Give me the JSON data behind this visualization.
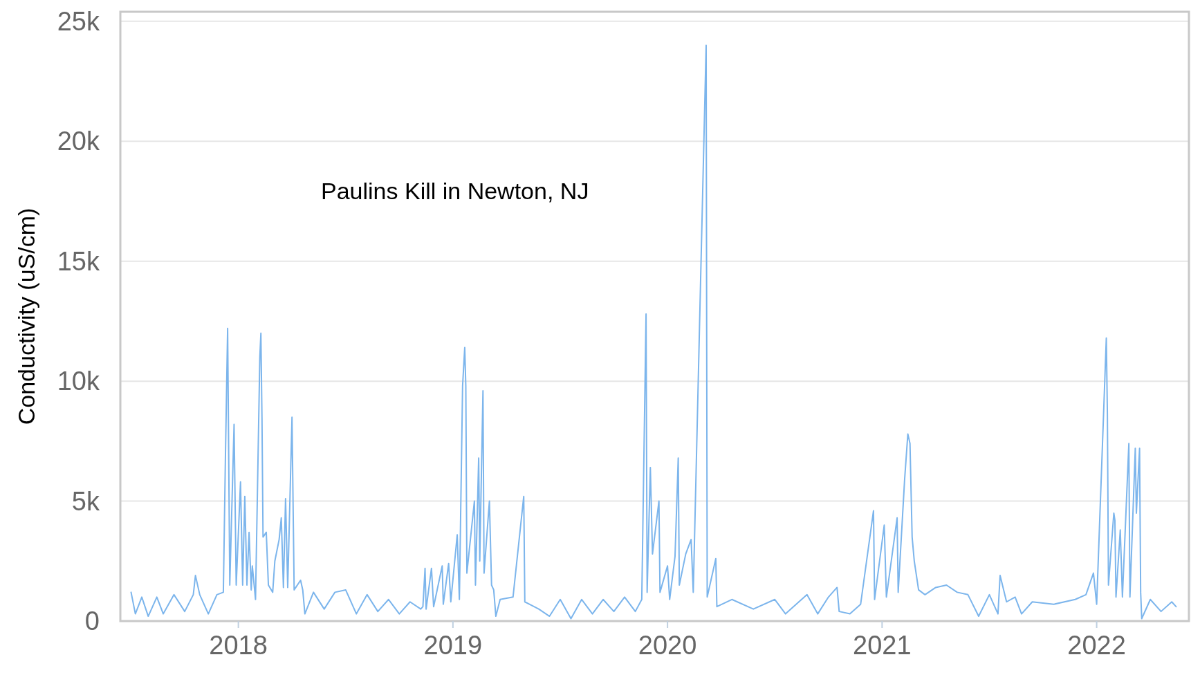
{
  "chart_data": {
    "type": "line",
    "title": "Paulins Kill in Newton, NJ",
    "ylabel": "Conductivity (uS/cm)",
    "xlim": [
      2017.45,
      2022.43
    ],
    "xticks": [
      2018,
      2019,
      2020,
      2021,
      2022
    ],
    "ylim": [
      0,
      25400
    ],
    "yticks": [
      0,
      {
        "value": 5000,
        "label": "5k"
      },
      {
        "value": 10000,
        "label": "10k"
      },
      {
        "value": 15000,
        "label": "15k"
      },
      {
        "value": 20000,
        "label": "20k"
      },
      {
        "value": 25000,
        "label": "25k"
      }
    ],
    "grid": "y",
    "marker": "none",
    "line_style": "solid",
    "series": [
      {
        "color": "#7cb5ec",
        "x": [
          2017.5,
          2017.52,
          2017.55,
          2017.58,
          2017.62,
          2017.65,
          2017.7,
          2017.75,
          2017.79,
          2017.8,
          2017.82,
          2017.86,
          2017.9,
          2017.93,
          2017.94,
          2017.95,
          2017.96,
          2017.98,
          2017.99,
          2018.01,
          2018.02,
          2018.03,
          2018.04,
          2018.05,
          2018.06,
          2018.065,
          2018.08,
          2018.1,
          2018.105,
          2018.11,
          2018.115,
          2018.13,
          2018.14,
          2018.16,
          2018.17,
          2018.19,
          2018.2,
          2018.21,
          2018.22,
          2018.23,
          2018.25,
          2018.26,
          2018.29,
          2018.3,
          2018.31,
          2018.35,
          2018.4,
          2018.45,
          2018.5,
          2018.55,
          2018.6,
          2018.65,
          2018.7,
          2018.75,
          2018.8,
          2018.85,
          2018.86,
          2018.87,
          2018.875,
          2018.9,
          2018.91,
          2018.95,
          2018.955,
          2018.98,
          2018.99,
          2019.02,
          2019.03,
          2019.045,
          2019.055,
          2019.06,
          2019.065,
          2019.1,
          2019.105,
          2019.12,
          2019.125,
          2019.14,
          2019.145,
          2019.17,
          2019.18,
          2019.19,
          2019.2,
          2019.22,
          2019.28,
          2019.33,
          2019.335,
          2019.4,
          2019.45,
          2019.5,
          2019.55,
          2019.6,
          2019.65,
          2019.7,
          2019.75,
          2019.8,
          2019.85,
          2019.88,
          2019.9,
          2019.905,
          2019.92,
          2019.93,
          2019.96,
          2019.965,
          2020.0,
          2020.01,
          2020.035,
          2020.05,
          2020.055,
          2020.085,
          2020.11,
          2020.12,
          2020.18,
          2020.185,
          2020.225,
          2020.23,
          2020.3,
          2020.4,
          2020.5,
          2020.55,
          2020.65,
          2020.7,
          2020.75,
          2020.79,
          2020.8,
          2020.85,
          2020.9,
          2020.96,
          2020.965,
          2021.01,
          2021.02,
          2021.07,
          2021.075,
          2021.105,
          2021.12,
          2021.13,
          2021.14,
          2021.15,
          2021.17,
          2021.2,
          2021.25,
          2021.3,
          2021.35,
          2021.4,
          2021.45,
          2021.5,
          2021.54,
          2021.55,
          2021.58,
          2021.62,
          2021.65,
          2021.7,
          2021.8,
          2021.9,
          2021.95,
          2021.985,
          2022.0,
          2022.045,
          2022.05,
          2022.055,
          2022.08,
          2022.085,
          2022.09,
          2022.11,
          2022.12,
          2022.15,
          2022.155,
          2022.18,
          2022.185,
          2022.2,
          2022.205,
          2022.21,
          2022.25,
          2022.3,
          2022.35,
          2022.37
        ],
        "values": [
          1200,
          300,
          1000,
          200,
          1000,
          300,
          1100,
          400,
          1100,
          1900,
          1100,
          300,
          1100,
          1200,
          7000,
          12200,
          1500,
          8200,
          1500,
          5800,
          1500,
          5200,
          1500,
          3700,
          1300,
          2300,
          900,
          11000,
          12000,
          8500,
          3500,
          3700,
          1500,
          1200,
          2500,
          3400,
          4300,
          1400,
          5100,
          1400,
          8500,
          1300,
          1700,
          1300,
          300,
          1200,
          500,
          1200,
          1300,
          300,
          1100,
          400,
          900,
          300,
          800,
          500,
          600,
          2200,
          500,
          2200,
          600,
          2300,
          700,
          2400,
          800,
          3600,
          900,
          9800,
          11400,
          9800,
          2000,
          5000,
          1500,
          6800,
          2500,
          9600,
          2000,
          5000,
          1500,
          1300,
          200,
          900,
          1000,
          5200,
          800,
          500,
          200,
          900,
          100,
          900,
          300,
          900,
          400,
          1000,
          400,
          900,
          12800,
          1200,
          6400,
          2800,
          5000,
          1200,
          2300,
          900,
          2700,
          6800,
          1500,
          2800,
          3400,
          1200,
          24000,
          1000,
          2600,
          600,
          900,
          500,
          900,
          300,
          1100,
          300,
          1000,
          1400,
          400,
          300,
          700,
          4600,
          900,
          4000,
          1000,
          4300,
          1200,
          5900,
          7800,
          7400,
          3500,
          2500,
          1300,
          1100,
          1400,
          1500,
          1200,
          1100,
          200,
          1100,
          300,
          1900,
          800,
          1000,
          300,
          800,
          700,
          900,
          1100,
          2000,
          700,
          11800,
          8600,
          1500,
          4500,
          4200,
          1000,
          3800,
          1000,
          7400,
          1000,
          7200,
          4500,
          7200,
          1200,
          100,
          900,
          400,
          800,
          600
        ]
      }
    ]
  }
}
